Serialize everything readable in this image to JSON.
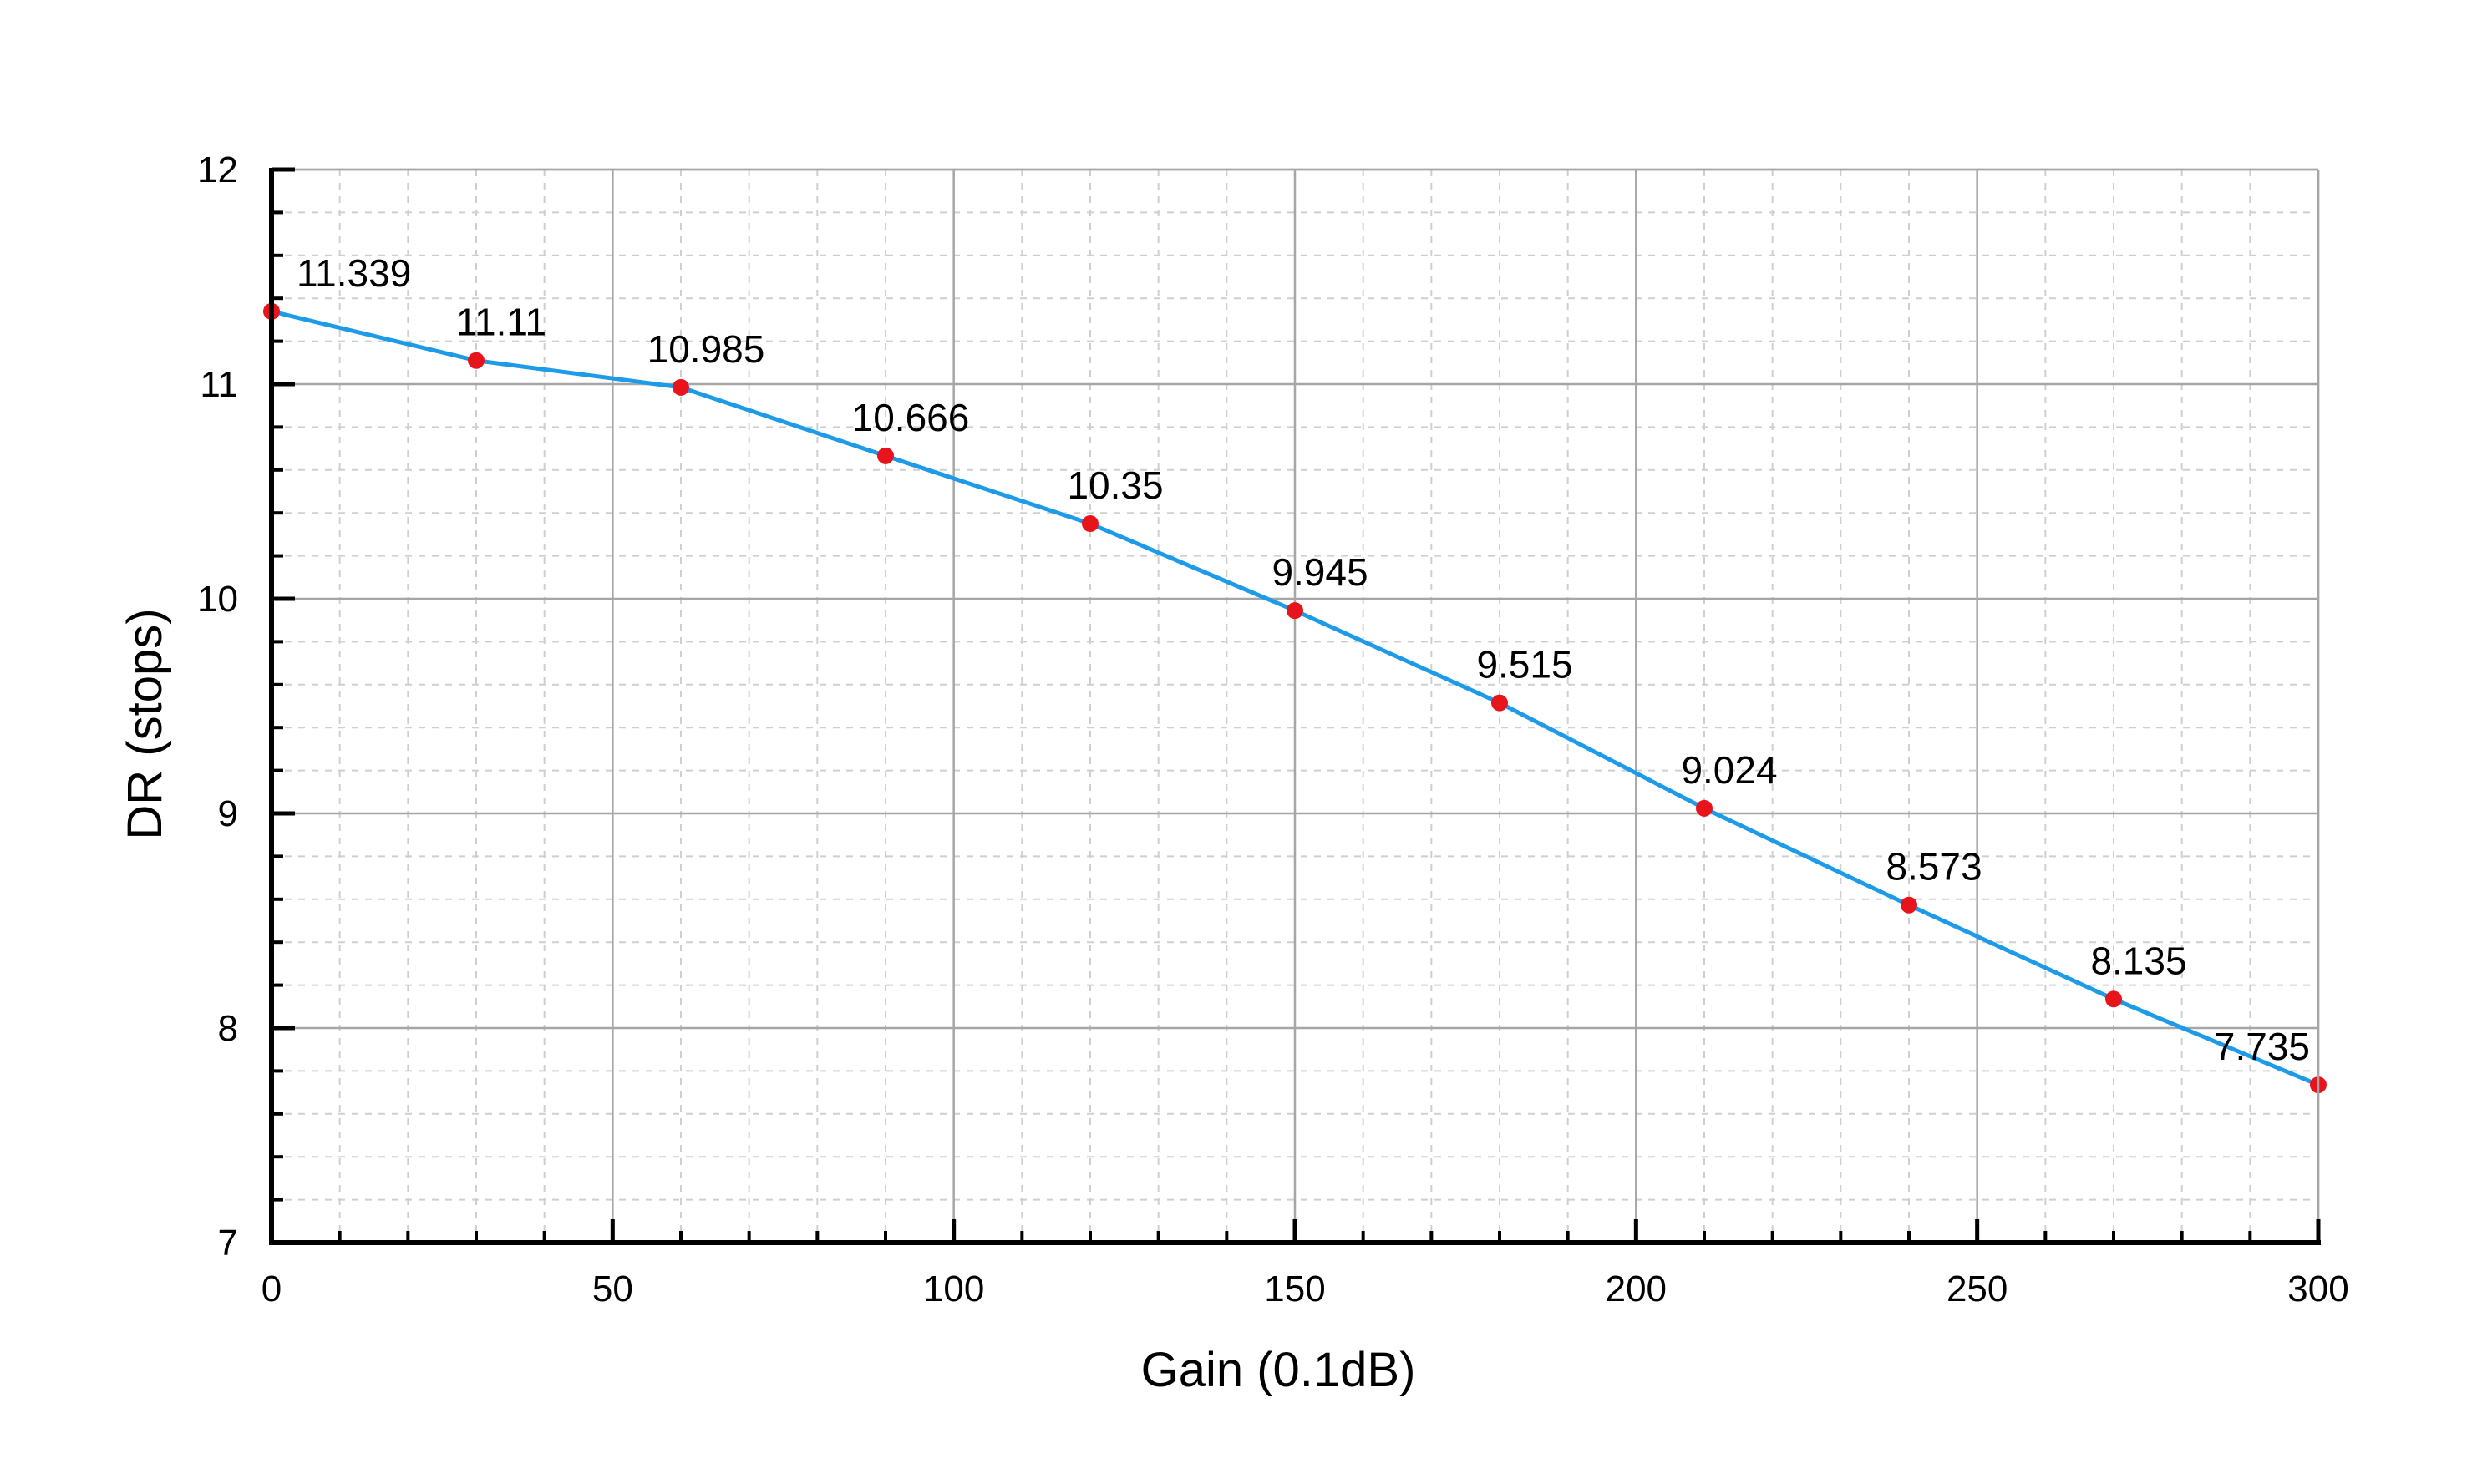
{
  "chart_data": {
    "type": "line",
    "title": "",
    "xlabel": "Gain (0.1dB)",
    "ylabel": "DR (stops)",
    "xlim": [
      0,
      300
    ],
    "ylim": [
      7,
      12
    ],
    "x_ticks": [
      0,
      50,
      100,
      150,
      200,
      250,
      300
    ],
    "y_ticks": [
      7,
      8,
      9,
      10,
      11,
      12
    ],
    "x_minor_step": 10,
    "y_minor_step": 0.2,
    "grid": true,
    "legend": "none",
    "series": [
      {
        "x": [
          0,
          30,
          60,
          90,
          120,
          150,
          180,
          210,
          240,
          270,
          300
        ],
        "values": [
          11.339,
          11.11,
          10.985,
          10.666,
          10.35,
          9.945,
          9.515,
          9.024,
          8.573,
          8.135,
          7.735
        ],
        "labels": [
          "11.339",
          "11.11",
          "10.985",
          "10.666",
          "10.35",
          "9.945",
          "9.515",
          "9.024",
          "8.573",
          "8.135",
          "7.735"
        ],
        "line_color": "#1E9BE8",
        "marker_color": "#E8141C"
      }
    ],
    "colors": {
      "axis": "#000000",
      "major_grid": "#A6A6A6",
      "minor_grid": "#CFCFCF"
    }
  }
}
